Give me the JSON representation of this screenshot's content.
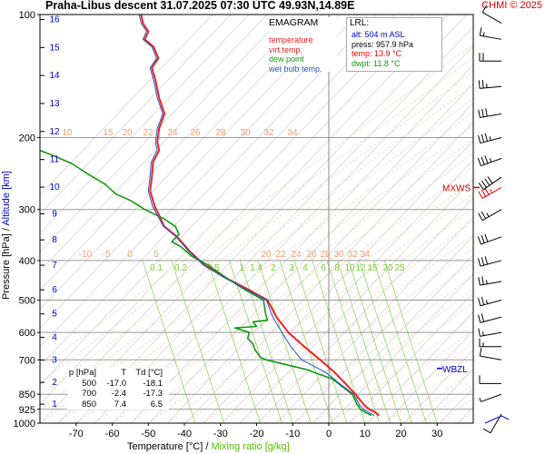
{
  "header": {
    "title": "Praha-Libus   descent   31.07.2025 07:30 UTC  49.93N,14.89E",
    "credit": "CHMI © 2025"
  },
  "legend": {
    "heading": "EMAGRAM",
    "items": [
      {
        "label": "temperature",
        "color": "#ee2222"
      },
      {
        "label": "virt.temp.",
        "color": "#ee2222"
      },
      {
        "label": "dew point",
        "color": "#119911"
      },
      {
        "label": "wet bulb temp.",
        "color": "#2255cc"
      }
    ]
  },
  "lrl": {
    "heading": "LRL:",
    "lines": [
      {
        "text": "alt: 504 m ASL",
        "color": "#0000cc"
      },
      {
        "text": "press: 957.9 hPa",
        "color": "#000000"
      },
      {
        "text": "temp: 13.9 °C",
        "color": "#ee0000"
      },
      {
        "text": "dwpt: 11.8 °C",
        "color": "#119911"
      }
    ]
  },
  "stats_table": {
    "headers": [
      "p [hPa]",
      "T",
      "Td [°C]"
    ],
    "rows": [
      [
        "500",
        "-17.0",
        "-18.1"
      ],
      [
        "700",
        "-2.4",
        "-17.3"
      ],
      [
        "850",
        "7.4",
        "6.5"
      ]
    ]
  },
  "axes": {
    "xlabel_a": "Temperature [°C]  /  ",
    "xlabel_b": "Mixing ratio [g/kg]",
    "ylabel_a": "Pressure [hPa]  /  ",
    "ylabel_b": "Altitude [km]",
    "x_ticks": [
      -70,
      -60,
      -50,
      -40,
      -30,
      -20,
      -10,
      0,
      10,
      20,
      30
    ],
    "x_tick_labels": [
      "-70",
      "-60",
      "-50",
      "-40",
      "-30",
      "-20",
      "-10",
      "0",
      "10",
      "20",
      "30"
    ],
    "p_ticks": [
      1000,
      925,
      850,
      700,
      600,
      500,
      400,
      300,
      200,
      100
    ],
    "p_tick_labels": [
      "1000",
      "925",
      "850",
      "700",
      "600",
      "500",
      "400",
      "300",
      "200",
      "100"
    ],
    "alt_ticks": [
      1,
      2,
      3,
      4,
      5,
      6,
      7,
      8,
      9,
      10,
      11,
      12,
      13,
      14,
      15,
      16
    ],
    "alt_tick_labels": [
      "1",
      "2",
      "3",
      "4",
      "5",
      "6",
      "7",
      "8",
      "9",
      "10",
      "11",
      "12",
      "13",
      "14",
      "15",
      "16"
    ]
  },
  "markers": {
    "mxws": "MXWS",
    "wbzl": "WBZL"
  },
  "chart_data": {
    "type": "line",
    "title": "Praha-Libus   descent   31.07.2025 07:30 UTC  49.93N,14.89E",
    "xlabel": "Temperature [°C]  /  Mixing ratio [g/kg]",
    "ylabel": "Pressure [hPa]  /  Altitude [km]",
    "x_range": [
      -80,
      40
    ],
    "p_range": [
      100,
      1000
    ],
    "y_scale": "log",
    "mixing_ratio_labels_upper": [
      "10",
      "15",
      "20",
      "22",
      "24",
      "26",
      "28",
      "30",
      "32",
      "34"
    ],
    "mixing_ratio_labels_mid": [
      "20",
      "22",
      "24",
      "26",
      "28",
      "30",
      "32",
      "34"
    ],
    "temp_labels_upper": [
      "-10",
      "-5",
      "0",
      "5"
    ],
    "mixing_ratio_labels_green": [
      "0.1",
      "0.2",
      "0.5",
      "1",
      "1.4",
      "2",
      "3",
      "4",
      "6",
      "8",
      "10",
      "12",
      "15",
      "20",
      "25"
    ],
    "series": [
      {
        "name": "temperature",
        "color": "#ee2222",
        "points": [
          [
            13.9,
            957.9
          ],
          [
            12.8,
            940
          ],
          [
            11.2,
            925
          ],
          [
            9.6,
            900
          ],
          [
            7.4,
            850
          ],
          [
            4.6,
            800
          ],
          [
            1.5,
            750
          ],
          [
            -2.4,
            700
          ],
          [
            -6.8,
            650
          ],
          [
            -11.2,
            600
          ],
          [
            -14.5,
            550
          ],
          [
            -17.0,
            500
          ],
          [
            -22.5,
            470
          ],
          [
            -28.8,
            440
          ],
          [
            -34.5,
            410
          ],
          [
            -38.5,
            380
          ],
          [
            -42.0,
            350
          ],
          [
            -45.6,
            330
          ],
          [
            -47.0,
            310
          ],
          [
            -48.2,
            295
          ],
          [
            -49.5,
            270
          ],
          [
            -49.0,
            250
          ],
          [
            -48.7,
            230
          ],
          [
            -47.0,
            215
          ],
          [
            -47.5,
            205
          ],
          [
            -47.0,
            190
          ],
          [
            -45.5,
            175
          ],
          [
            -47.0,
            160
          ],
          [
            -48.0,
            145
          ],
          [
            -49.0,
            135
          ],
          [
            -47.2,
            128
          ],
          [
            -48.5,
            120
          ],
          [
            -51.0,
            115
          ],
          [
            -50.0,
            110
          ],
          [
            -51.5,
            105
          ],
          [
            -52.0,
            100
          ]
        ]
      },
      {
        "name": "dew point",
        "color": "#119911",
        "points": [
          [
            11.8,
            957.9
          ],
          [
            10.0,
            940
          ],
          [
            8.8,
            925
          ],
          [
            7.8,
            900
          ],
          [
            6.5,
            850
          ],
          [
            1.0,
            780
          ],
          [
            -2.5,
            760
          ],
          [
            -6.0,
            740
          ],
          [
            -17.3,
            700
          ],
          [
            -19.0,
            690
          ],
          [
            -20.5,
            660
          ],
          [
            -21.0,
            640
          ],
          [
            -22.5,
            620
          ],
          [
            -22.0,
            600
          ],
          [
            -26.0,
            585
          ],
          [
            -20.0,
            580
          ],
          [
            -21.0,
            565
          ],
          [
            -17.0,
            560
          ],
          [
            -17.5,
            540
          ],
          [
            -18.1,
            500
          ],
          [
            -23.5,
            470
          ],
          [
            -28.5,
            440
          ],
          [
            -33.5,
            410
          ],
          [
            -38.0,
            390
          ],
          [
            -41.0,
            370
          ],
          [
            -43.5,
            360
          ],
          [
            -41.5,
            345
          ],
          [
            -42.5,
            330
          ],
          [
            -46.0,
            315
          ],
          [
            -51.0,
            300
          ],
          [
            -55.0,
            285
          ],
          [
            -59.0,
            275
          ],
          [
            -62.0,
            260
          ],
          [
            -67.0,
            245
          ],
          [
            -71.0,
            232
          ],
          [
            -76.0,
            222
          ],
          [
            -80.0,
            215
          ]
        ]
      },
      {
        "name": "wet bulb temp.",
        "color": "#2255cc",
        "points": [
          [
            12.5,
            957.9
          ],
          [
            11.0,
            940
          ],
          [
            9.6,
            925
          ],
          [
            8.4,
            900
          ],
          [
            6.9,
            850
          ],
          [
            3.0,
            800
          ],
          [
            -1.0,
            750
          ],
          [
            -7.5,
            700
          ],
          [
            -10.5,
            650
          ],
          [
            -13.0,
            600
          ],
          [
            -15.5,
            550
          ],
          [
            -17.3,
            500
          ],
          [
            -23.0,
            470
          ],
          [
            -29.0,
            440
          ],
          [
            -34.8,
            410
          ],
          [
            -38.8,
            380
          ],
          [
            -42.3,
            350
          ],
          [
            -45.8,
            330
          ],
          [
            -47.5,
            310
          ],
          [
            -48.8,
            295
          ],
          [
            -50.0,
            270
          ],
          [
            -49.5,
            250
          ],
          [
            -49.2,
            230
          ],
          [
            -47.6,
            215
          ],
          [
            -48.0,
            205
          ],
          [
            -47.5,
            190
          ],
          [
            -46.0,
            175
          ],
          [
            -47.5,
            160
          ],
          [
            -48.5,
            145
          ],
          [
            -49.5,
            135
          ],
          [
            -47.7,
            128
          ],
          [
            -49.0,
            120
          ],
          [
            -51.5,
            115
          ],
          [
            -50.5,
            110
          ],
          [
            -52.0,
            105
          ],
          [
            -52.5,
            100
          ]
        ]
      }
    ],
    "wind_barbs": [
      {
        "p": 950,
        "dir": 210,
        "speed_kt": 10
      },
      {
        "p": 850,
        "dir": 250,
        "speed_kt": 5
      },
      {
        "p": 800,
        "dir": 270,
        "speed_kt": 10
      },
      {
        "p": 700,
        "dir": 280,
        "speed_kt": 10
      },
      {
        "p": 650,
        "dir": 270,
        "speed_kt": 15
      },
      {
        "p": 600,
        "dir": 260,
        "speed_kt": 15
      },
      {
        "p": 550,
        "dir": 255,
        "speed_kt": 20
      },
      {
        "p": 500,
        "dir": 255,
        "speed_kt": 25
      },
      {
        "p": 450,
        "dir": 260,
        "speed_kt": 25
      },
      {
        "p": 400,
        "dir": 255,
        "speed_kt": 30
      },
      {
        "p": 350,
        "dir": 250,
        "speed_kt": 30
      },
      {
        "p": 300,
        "dir": 240,
        "speed_kt": 25
      },
      {
        "p": 265,
        "dir": 240,
        "speed_kt": 35
      },
      {
        "p": 250,
        "dir": 235,
        "speed_kt": 40
      },
      {
        "p": 225,
        "dir": 250,
        "speed_kt": 35
      },
      {
        "p": 200,
        "dir": 255,
        "speed_kt": 35
      },
      {
        "p": 175,
        "dir": 260,
        "speed_kt": 30
      },
      {
        "p": 150,
        "dir": 265,
        "speed_kt": 25
      },
      {
        "p": 130,
        "dir": 270,
        "speed_kt": 20
      },
      {
        "p": 115,
        "dir": 280,
        "speed_kt": 15
      },
      {
        "p": 105,
        "dir": 300,
        "speed_kt": 10
      }
    ]
  }
}
